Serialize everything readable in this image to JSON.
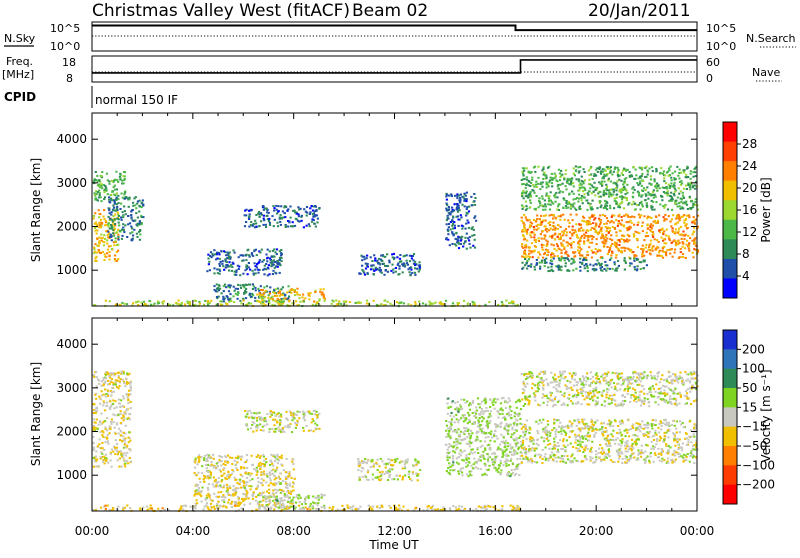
{
  "header": {
    "title": "Christmas Valley West (fitACF)",
    "beam": "Beam 02",
    "date": "20/Jan/2011"
  },
  "strip1": {
    "left_label": "N.Sky",
    "left_top": "10^5",
    "left_bottom": "10^0",
    "right_top": "10^5",
    "right_bottom": "10^0",
    "right_label": "N.Search"
  },
  "strip2": {
    "left_label_1": "Freq.",
    "left_label_2": "[MHz]",
    "left_top": "18",
    "left_bottom": "8",
    "right_top": "60",
    "right_bottom": "0",
    "right_label": "Nave"
  },
  "cpid": {
    "label": "CPID",
    "value": "normal 150 IF"
  },
  "x_axis": {
    "label": "Time UT",
    "ticks": [
      "00:00",
      "04:00",
      "08:00",
      "12:00",
      "16:00",
      "20:00",
      "00:00"
    ]
  },
  "colors": {
    "power_scale": [
      "#0000ff",
      "#1f4fa8",
      "#2e8b57",
      "#4cb848",
      "#9cd830",
      "#f0c000",
      "#ff8000",
      "#ff4000",
      "#ff0000"
    ],
    "velocity_scale": [
      "#1a2fd0",
      "#2f73b8",
      "#2e8b57",
      "#7ed420",
      "#c8c8c0",
      "#f0c000",
      "#ff8000",
      "#ff3c00",
      "#ff0000"
    ]
  },
  "chart_data": [
    {
      "type": "heatmap",
      "name": "power",
      "ylabel": "Slant Range [km]",
      "xlabel": "",
      "x_range_hours": [
        0,
        24
      ],
      "ylim": [
        180,
        4600
      ],
      "y_ticks": [
        "1000",
        "2000",
        "3000",
        "4000"
      ],
      "colorbar": {
        "label": "Power [dB]",
        "ticks": [
          "4",
          "8",
          "12",
          "16",
          "20",
          "24",
          "28"
        ],
        "range": [
          0,
          32
        ]
      },
      "regions": [
        {
          "hours": [
            0.0,
            1.0
          ],
          "range_km": [
            1200,
            2400
          ],
          "value": 20
        },
        {
          "hours": [
            0.0,
            1.3
          ],
          "range_km": [
            2600,
            3300
          ],
          "value": 12
        },
        {
          "hours": [
            0.6,
            2.0
          ],
          "range_km": [
            1700,
            2700
          ],
          "value": 8
        },
        {
          "hours": [
            4.5,
            7.5
          ],
          "range_km": [
            900,
            1500
          ],
          "value": 6
        },
        {
          "hours": [
            4.8,
            7.8
          ],
          "range_km": [
            300,
            700
          ],
          "value": 8
        },
        {
          "hours": [
            6.5,
            9.2
          ],
          "range_km": [
            300,
            600
          ],
          "value": 20
        },
        {
          "hours": [
            6.0,
            9.0
          ],
          "range_km": [
            2000,
            2500
          ],
          "value": 6
        },
        {
          "hours": [
            10.5,
            13.0
          ],
          "range_km": [
            900,
            1400
          ],
          "value": 6
        },
        {
          "hours": [
            14.0,
            15.2
          ],
          "range_km": [
            1500,
            2800
          ],
          "value": 6
        },
        {
          "hours": [
            0.0,
            17.0
          ],
          "range_km": [
            200,
            330
          ],
          "value": 16
        },
        {
          "hours": [
            17.0,
            24.0
          ],
          "range_km": [
            1300,
            2300
          ],
          "value": 22
        },
        {
          "hours": [
            17.0,
            22.0
          ],
          "range_km": [
            1000,
            1300
          ],
          "value": 8
        },
        {
          "hours": [
            17.0,
            24.0
          ],
          "range_km": [
            2400,
            3400
          ],
          "value": 12
        }
      ]
    },
    {
      "type": "heatmap",
      "name": "velocity",
      "ylabel": "Slant Range [km]",
      "xlabel": "Time UT",
      "x_range_hours": [
        0,
        24
      ],
      "ylim": [
        180,
        4600
      ],
      "y_ticks": [
        "1000",
        "2000",
        "3000",
        "4000"
      ],
      "colorbar": {
        "label": "Velocity [m s⁻¹]",
        "ticks": [
          "200",
          "100",
          "50",
          "15",
          "−15",
          "−50",
          "−100",
          "−200"
        ],
        "range": [
          -250,
          250
        ]
      },
      "regions": [
        {
          "hours": [
            0.0,
            1.5
          ],
          "range_km": [
            1200,
            3400
          ],
          "value": -20
        },
        {
          "hours": [
            4.0,
            8.0
          ],
          "range_km": [
            300,
            1500
          ],
          "value": -20
        },
        {
          "hours": [
            6.5,
            9.2
          ],
          "range_km": [
            250,
            600
          ],
          "value": 30
        },
        {
          "hours": [
            6.0,
            9.0
          ],
          "range_km": [
            2000,
            2500
          ],
          "value": 0
        },
        {
          "hours": [
            10.5,
            13.0
          ],
          "range_km": [
            900,
            1400
          ],
          "value": 0
        },
        {
          "hours": [
            14.0,
            17.0
          ],
          "range_km": [
            1000,
            2800
          ],
          "value": 30
        },
        {
          "hours": [
            17.0,
            24.0
          ],
          "range_km": [
            1300,
            2300
          ],
          "value": 0
        },
        {
          "hours": [
            17.0,
            24.0
          ],
          "range_km": [
            2600,
            3400
          ],
          "value": 0
        },
        {
          "hours": [
            0.0,
            17.0
          ],
          "range_km": [
            200,
            330
          ],
          "value": -30
        }
      ]
    },
    {
      "type": "line",
      "name": "nsky-nsearch",
      "x": [
        0,
        16.8,
        16.8,
        24
      ],
      "series": [
        {
          "values": [
            4.4,
            4.4,
            3.6,
            3.6
          ]
        }
      ]
    },
    {
      "type": "line",
      "name": "freq-nave",
      "x": [
        0,
        17.0,
        17.0,
        24
      ],
      "series": [
        {
          "values": [
            11.5,
            11.5,
            16.5,
            16.5
          ]
        }
      ]
    }
  ]
}
